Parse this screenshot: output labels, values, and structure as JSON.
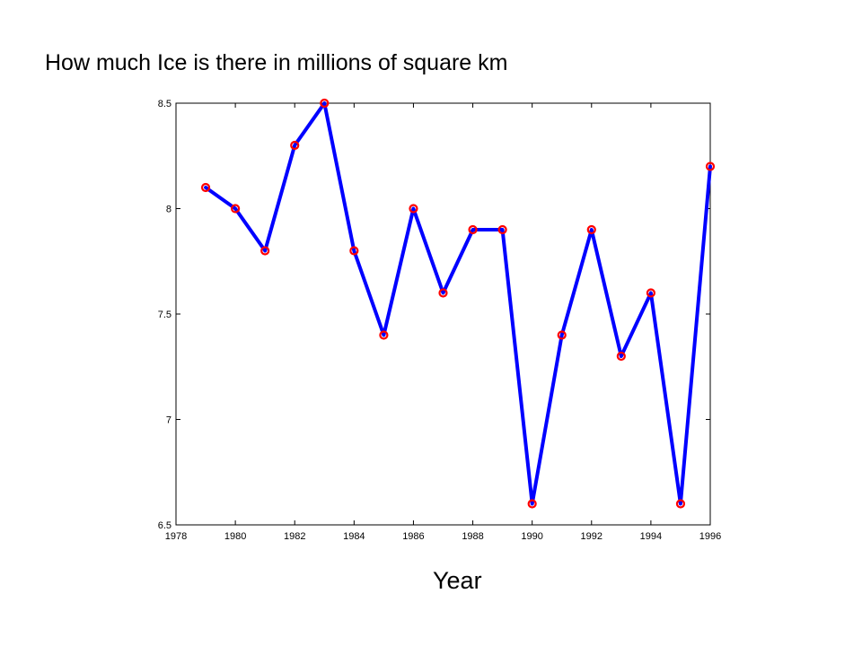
{
  "slide_title": "How much Ice is there in millions of square km",
  "chart_data": {
    "type": "line",
    "title": "",
    "xlabel": "Year",
    "ylabel": "",
    "xlim": [
      1978,
      1996
    ],
    "ylim": [
      6.5,
      8.5
    ],
    "xticks": [
      1978,
      1980,
      1982,
      1984,
      1986,
      1988,
      1990,
      1992,
      1994,
      1996
    ],
    "yticks": [
      6.5,
      7,
      7.5,
      8,
      8.5
    ],
    "grid": false,
    "legend": "none",
    "series": [
      {
        "x": [
          1979,
          1980,
          1981,
          1982,
          1983,
          1984,
          1985,
          1986,
          1987,
          1988,
          1989,
          1990,
          1991,
          1992,
          1993,
          1994,
          1995,
          1996
        ],
        "y": [
          8.1,
          8.0,
          7.8,
          8.3,
          8.5,
          7.8,
          7.4,
          8.0,
          7.6,
          7.9,
          7.9,
          6.6,
          7.4,
          7.9,
          7.3,
          7.6,
          6.6,
          8.2
        ],
        "line_color": "#0000ff",
        "marker_color": "#ff0000"
      }
    ]
  }
}
